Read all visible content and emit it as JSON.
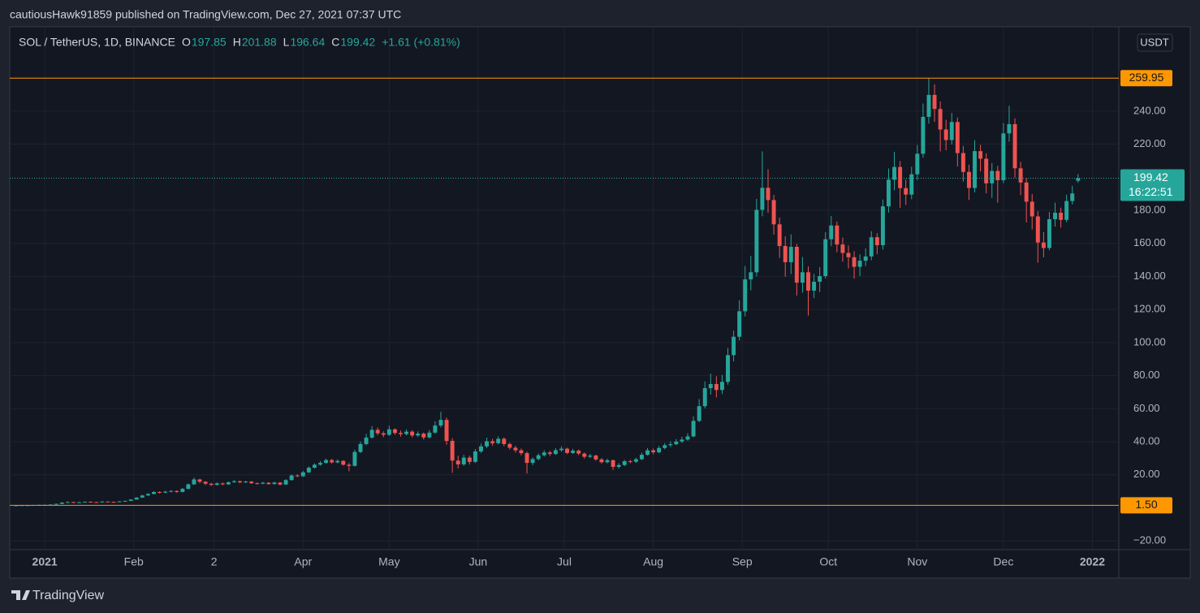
{
  "header": {
    "published": "cautiousHawk91859 published on TradingView.com, Dec 27, 2021 07:37 UTC"
  },
  "chart_data": {
    "type": "candlestick",
    "symbol": "SOL / TetherUS, 1D, BINANCE",
    "ohlc_labels": [
      "O",
      "H",
      "L",
      "C"
    ],
    "ohlc_values": [
      197.85,
      201.88,
      196.64,
      199.42
    ],
    "change": "+1.61 (+0.81%)",
    "currency": "USDT",
    "x": [
      -10,
      -8,
      -6,
      -4,
      -2,
      0,
      2,
      4,
      6,
      8,
      10,
      12,
      14,
      16,
      18,
      20,
      22,
      24,
      26,
      28,
      30,
      32,
      34,
      36,
      38,
      40,
      42,
      44,
      46,
      48,
      50,
      52,
      54,
      56,
      58,
      60,
      62,
      64,
      66,
      68,
      70,
      72,
      74,
      76,
      78,
      80,
      82,
      84,
      86,
      88,
      90,
      92,
      94,
      96,
      98,
      100,
      102,
      104,
      106,
      108,
      110,
      112,
      114,
      116,
      118,
      120,
      122,
      124,
      126,
      128,
      130,
      132,
      134,
      136,
      138,
      140,
      142,
      144,
      146,
      148,
      150,
      152,
      154,
      156,
      158,
      160,
      162,
      164,
      166,
      168,
      170,
      172,
      174,
      176,
      178,
      180,
      182,
      184,
      186,
      188,
      190,
      192,
      194,
      196,
      198,
      200,
      202,
      204,
      206,
      208,
      210,
      212,
      214,
      216,
      218,
      220,
      222,
      224,
      226,
      228,
      230,
      232,
      234,
      236,
      238,
      240,
      242,
      244,
      246,
      248,
      250,
      252,
      254,
      256,
      258,
      260,
      262,
      264,
      266,
      268,
      270,
      272,
      274,
      276,
      278,
      280,
      282,
      284,
      286,
      288,
      290,
      292,
      294,
      296,
      298,
      300,
      302,
      304,
      306,
      308,
      310,
      312,
      314,
      316,
      318,
      320,
      322,
      324,
      326,
      328,
      330,
      332,
      334,
      336,
      338,
      340,
      342,
      344,
      346,
      348,
      350,
      352,
      354,
      356,
      358,
      360
    ],
    "open": [
      1.5,
      1.5,
      1.6,
      1.6,
      1.7,
      1.8,
      1.8,
      2.0,
      2.4,
      3.2,
      3.5,
      3.1,
      3.4,
      3.7,
      3.5,
      3.3,
      3.8,
      3.6,
      3.5,
      3.9,
      4.2,
      5.0,
      6.2,
      7.5,
      8.4,
      9.6,
      9.2,
      9.8,
      10.2,
      9.6,
      11.5,
      14.2,
      17.2,
      15.8,
      14.6,
      13.9,
      14.8,
      14.2,
      15.5,
      16.1,
      15.4,
      15.9,
      14.9,
      14.6,
      15.2,
      14.4,
      15.3,
      14.1,
      16.8,
      19.6,
      19.1,
      21.5,
      24.3,
      26.1,
      27.2,
      28.9,
      27.5,
      28.4,
      26.1,
      25.4,
      33.8,
      38.6,
      42.5,
      47.2,
      45.1,
      44.2,
      47.5,
      45.3,
      44.6,
      46.1,
      43.8,
      44.9,
      42.6,
      45.5,
      49.8,
      53.2,
      40.5,
      28.6,
      26.3,
      30.4,
      27.8,
      34.1,
      37.2,
      40.3,
      39.1,
      41.8,
      38.6,
      36.4,
      34.8,
      33.1,
      27.2,
      29.5,
      31.8,
      33.5,
      32.6,
      34.9,
      35.8,
      33.2,
      34.6,
      32.8,
      30.9,
      31.6,
      29.3,
      27.6,
      28.8,
      24.8,
      25.9,
      28.2,
      27.9,
      29.4,
      32.1,
      34.8,
      33.6,
      36.2,
      37.9,
      38.5,
      40.1,
      41.3,
      43.2,
      52.6,
      61.5,
      72.4,
      74.9,
      71.3,
      76.2,
      92.4,
      103.5,
      118.9,
      138.2,
      142.5,
      180.3,
      193.6,
      186.2,
      171.5,
      158.4,
      148.6,
      157.9,
      136.2,
      142.5,
      131.4,
      136.8,
      140.2,
      162.5,
      170.8,
      159.3,
      154.2,
      151.6,
      145.8,
      149.5,
      152.1,
      163.7,
      158.9,
      182.4,
      198.5,
      206.2,
      193.4,
      189.5,
      201.8,
      214.2,
      236.5,
      249.8,
      241.3,
      228.9,
      222.5,
      233.4,
      214.6,
      203.2,
      193.5,
      215.8,
      211.2,
      196.3,
      203.8,
      198.2,
      226.5,
      232.1,
      205.4,
      196.8,
      185.2,
      176.3,
      160.5,
      157.2,
      174.6,
      178.5,
      174.2,
      185.6,
      197.85
    ],
    "high": [
      1.6,
      1.7,
      1.7,
      1.8,
      1.9,
      2.0,
      2.1,
      2.6,
      3.4,
      3.9,
      3.7,
      3.6,
      3.9,
      3.9,
      3.6,
      4.0,
      3.9,
      3.8,
      4.1,
      4.4,
      5.3,
      6.5,
      7.9,
      8.9,
      10.1,
      10.0,
      10.3,
      10.8,
      10.6,
      12.0,
      14.8,
      18.3,
      17.6,
      16.2,
      15.1,
      15.4,
      15.3,
      16.0,
      16.8,
      16.5,
      16.4,
      16.2,
      15.3,
      15.7,
      15.5,
      15.8,
      15.6,
      17.3,
      20.2,
      20.4,
      22.3,
      25.1,
      27.0,
      28.3,
      29.8,
      29.6,
      29.3,
      28.8,
      27.2,
      35.2,
      40.1,
      44.8,
      49.5,
      48.6,
      46.3,
      49.6,
      48.1,
      46.8,
      47.5,
      46.9,
      46.2,
      45.6,
      47.1,
      52.4,
      58.1,
      54.6,
      42.1,
      31.5,
      32.1,
      31.6,
      35.6,
      38.9,
      42.5,
      41.8,
      43.2,
      42.6,
      39.5,
      37.6,
      35.9,
      33.9,
      30.6,
      32.9,
      34.8,
      34.5,
      36.1,
      37.2,
      36.4,
      35.7,
      35.3,
      33.5,
      32.7,
      32.2,
      30.1,
      29.7,
      29.2,
      27.1,
      29.0,
      29.1,
      30.3,
      33.4,
      36.2,
      35.9,
      37.5,
      39.1,
      40.2,
      41.6,
      43.0,
      45.1,
      55.3,
      65.8,
      76.5,
      81.2,
      79.6,
      80.4,
      96.8,
      107.2,
      125.6,
      146.3,
      152.4,
      186.9,
      215.6,
      204.8,
      189.3,
      175.6,
      164.3,
      165.4,
      159.6,
      151.8,
      146.1,
      141.5,
      145.6,
      166.8,
      176.5,
      173.2,
      163.5,
      158.7,
      155.2,
      153.4,
      156.9,
      167.4,
      166.2,
      186.5,
      205.3,
      215.4,
      209.8,
      198.6,
      206.4,
      219.5,
      244.6,
      259.95,
      256.2,
      245.8,
      234.7,
      238.9,
      236.2,
      218.9,
      207.6,
      222.4,
      219.6,
      214.5,
      208.6,
      206.9,
      232.8,
      243.2,
      235.6,
      209.3,
      199.5,
      189.8,
      179.5,
      166.8,
      178.9,
      184.6,
      181.6,
      189.4,
      194.8,
      201.88
    ],
    "low": [
      1.5,
      1.5,
      1.5,
      1.6,
      1.6,
      1.7,
      1.7,
      1.9,
      2.3,
      3.0,
      2.9,
      3.0,
      3.3,
      3.3,
      3.1,
      3.2,
      3.4,
      3.3,
      3.4,
      3.8,
      4.1,
      4.9,
      6.0,
      7.2,
      8.1,
      8.7,
      8.9,
      9.4,
      9.1,
      9.4,
      11.2,
      13.9,
      14.9,
      13.8,
      13.2,
      13.5,
      13.7,
      13.9,
      15.1,
      14.9,
      15.0,
      14.5,
      14.1,
      14.3,
      14.0,
      14.1,
      13.6,
      13.9,
      16.5,
      18.6,
      18.8,
      21.0,
      23.8,
      25.5,
      26.7,
      26.8,
      26.9,
      25.6,
      22.1,
      25.0,
      33.1,
      37.9,
      41.8,
      43.9,
      42.8,
      43.5,
      44.2,
      43.1,
      43.8,
      42.6,
      42.9,
      41.3,
      41.9,
      44.8,
      48.6,
      38.2,
      21.2,
      23.8,
      25.4,
      26.2,
      27.1,
      33.2,
      36.1,
      37.6,
      38.4,
      37.3,
      35.2,
      33.5,
      31.8,
      20.8,
      25.9,
      28.7,
      31.0,
      31.4,
      32.0,
      33.9,
      32.5,
      32.6,
      31.9,
      29.8,
      30.1,
      28.5,
      26.8,
      26.9,
      22.9,
      23.8,
      25.3,
      27.0,
      27.2,
      28.9,
      31.6,
      32.4,
      33.0,
      35.4,
      36.8,
      37.9,
      39.2,
      40.6,
      42.8,
      51.9,
      60.2,
      68.5,
      66.8,
      68.9,
      74.5,
      88.6,
      101.2,
      115.8,
      131.6,
      140.1,
      176.4,
      178.5,
      165.2,
      151.2,
      139.8,
      141.5,
      128.4,
      130.2,
      116.3,
      126.9,
      130.5,
      138.7,
      158.3,
      154.6,
      148.9,
      144.8,
      138.6,
      140.2,
      146.3,
      149.8,
      153.5,
      156.2,
      178.6,
      192.1,
      181.5,
      183.2,
      186.7,
      198.3,
      211.8,
      232.4,
      233.5,
      215.6,
      216.3,
      219.8,
      206.5,
      197.4,
      186.2,
      190.8,
      203.5,
      190.2,
      187.5,
      184.6,
      196.4,
      221.5,
      199.8,
      189.2,
      172.6,
      168.4,
      148.3,
      151.6,
      155.8,
      170.2,
      169.5,
      172.8,
      183.5,
      196.64
    ],
    "close": [
      1.5,
      1.6,
      1.6,
      1.7,
      1.8,
      1.8,
      2.0,
      2.4,
      3.2,
      3.5,
      3.1,
      3.4,
      3.7,
      3.5,
      3.3,
      3.8,
      3.6,
      3.5,
      3.9,
      4.2,
      5.0,
      6.2,
      7.5,
      8.4,
      9.6,
      9.2,
      9.8,
      10.2,
      9.6,
      11.5,
      14.2,
      17.2,
      15.8,
      14.6,
      13.9,
      14.8,
      14.2,
      15.5,
      16.1,
      15.4,
      15.9,
      14.9,
      14.6,
      15.2,
      14.4,
      15.3,
      14.1,
      16.8,
      19.6,
      19.1,
      21.5,
      24.3,
      26.1,
      27.2,
      28.9,
      27.5,
      28.4,
      26.1,
      25.4,
      33.8,
      38.6,
      42.5,
      47.2,
      45.1,
      44.2,
      47.5,
      45.3,
      44.6,
      46.1,
      43.8,
      44.9,
      42.6,
      45.5,
      49.8,
      53.2,
      40.5,
      28.6,
      26.3,
      30.4,
      27.8,
      34.1,
      37.2,
      40.3,
      39.1,
      41.8,
      38.6,
      36.4,
      34.8,
      33.1,
      27.2,
      29.5,
      31.8,
      33.5,
      32.6,
      34.9,
      35.8,
      33.2,
      34.6,
      32.8,
      30.9,
      31.6,
      29.3,
      27.6,
      28.8,
      24.8,
      25.9,
      28.2,
      27.9,
      29.4,
      32.1,
      34.8,
      33.6,
      36.2,
      37.9,
      38.5,
      40.1,
      41.3,
      43.2,
      52.6,
      61.5,
      72.4,
      74.9,
      71.3,
      76.2,
      92.4,
      103.5,
      118.9,
      138.2,
      142.5,
      180.3,
      193.6,
      186.2,
      171.5,
      158.4,
      148.6,
      157.9,
      136.2,
      142.5,
      131.4,
      136.8,
      140.2,
      162.5,
      170.8,
      159.3,
      154.2,
      151.6,
      145.8,
      149.5,
      152.1,
      163.7,
      158.9,
      182.4,
      198.5,
      206.2,
      193.4,
      189.5,
      201.8,
      214.2,
      236.5,
      249.8,
      241.3,
      228.9,
      222.5,
      233.4,
      214.6,
      203.2,
      193.5,
      215.8,
      211.2,
      196.3,
      203.8,
      198.2,
      226.5,
      232.1,
      205.4,
      196.8,
      185.2,
      176.3,
      160.5,
      157.2,
      174.6,
      178.5,
      174.2,
      185.6,
      190.2,
      199.42
    ],
    "up_color": "#26a69a",
    "down_color": "#ef5350",
    "xlim": [
      -12.2,
      374.2
    ],
    "xticks": [
      {
        "value": 0,
        "label": "2021"
      },
      {
        "value": 31,
        "label": "Feb"
      },
      {
        "value": 59,
        "label": "2"
      },
      {
        "value": 90,
        "label": "Apr"
      },
      {
        "value": 120,
        "label": "May"
      },
      {
        "value": 151,
        "label": "Jun"
      },
      {
        "value": 181,
        "label": "Jul"
      },
      {
        "value": 212,
        "label": "Aug"
      },
      {
        "value": 243,
        "label": "Sep"
      },
      {
        "value": 273,
        "label": "Oct"
      },
      {
        "value": 304,
        "label": "Nov"
      },
      {
        "value": 334,
        "label": "Dec"
      },
      {
        "value": 365,
        "label": "2022"
      }
    ],
    "ylim": [
      -25.3,
      291
    ],
    "yticks": [
      {
        "value": -20,
        "label": "−20.00"
      },
      {
        "value": 20,
        "label": "20.00"
      },
      {
        "value": 40,
        "label": "40.00"
      },
      {
        "value": 60,
        "label": "60.00"
      },
      {
        "value": 80,
        "label": "80.00"
      },
      {
        "value": 100,
        "label": "100.00"
      },
      {
        "value": 120,
        "label": "120.00"
      },
      {
        "value": 140,
        "label": "140.00"
      },
      {
        "value": 160,
        "label": "160.00"
      },
      {
        "value": 180,
        "label": "180.00"
      },
      {
        "value": 220,
        "label": "220.00"
      },
      {
        "value": 240,
        "label": "240.00"
      }
    ],
    "hlines": [
      259.95,
      {
        "value": 1.5,
        "label": "1.50"
      }
    ],
    "hline_color": "#ff9800",
    "last_price": 199.42,
    "countdown": "16:22:51",
    "grid": true
  },
  "footer": {
    "brand": "TradingView"
  }
}
